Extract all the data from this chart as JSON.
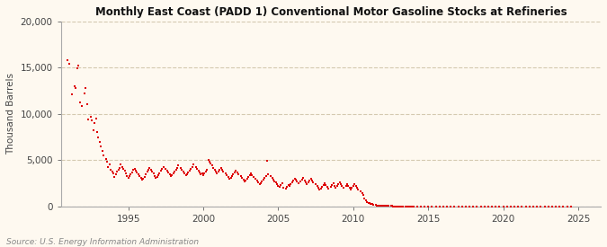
{
  "title": "Monthly East Coast (PADD 1) Conventional Motor Gasoline Stocks at Refineries",
  "ylabel": "Thousand Barrels",
  "source": "Source: U.S. Energy Information Administration",
  "background_color": "#fef9f0",
  "plot_bg_color": "#fef9f0",
  "grid_color": "#d4c9b0",
  "data_color": "#dd0000",
  "ylim": [
    0,
    20000
  ],
  "yticks": [
    0,
    5000,
    10000,
    15000,
    20000
  ],
  "xlim_start": 1990.5,
  "xlim_end": 2026.5,
  "xticks": [
    1995,
    2000,
    2005,
    2010,
    2015,
    2020,
    2025
  ],
  "series": [
    [
      1990.917,
      15800
    ],
    [
      1991.083,
      15400
    ],
    [
      1991.25,
      12100
    ],
    [
      1991.417,
      13000
    ],
    [
      1991.5,
      12800
    ],
    [
      1991.583,
      14900
    ],
    [
      1991.667,
      15200
    ],
    [
      1991.75,
      11200
    ],
    [
      1991.917,
      10900
    ],
    [
      1992.083,
      12200
    ],
    [
      1992.167,
      12800
    ],
    [
      1992.25,
      11100
    ],
    [
      1992.333,
      9400
    ],
    [
      1992.5,
      9700
    ],
    [
      1992.583,
      9300
    ],
    [
      1992.667,
      8200
    ],
    [
      1992.75,
      9000
    ],
    [
      1992.833,
      9500
    ],
    [
      1992.917,
      8000
    ],
    [
      1993.0,
      7500
    ],
    [
      1993.083,
      7000
    ],
    [
      1993.167,
      6500
    ],
    [
      1993.25,
      6000
    ],
    [
      1993.333,
      5500
    ],
    [
      1993.5,
      5100
    ],
    [
      1993.583,
      4800
    ],
    [
      1993.667,
      4300
    ],
    [
      1993.75,
      4500
    ],
    [
      1993.833,
      4000
    ],
    [
      1993.917,
      3800
    ],
    [
      1994.0,
      3600
    ],
    [
      1994.083,
      3200
    ],
    [
      1994.167,
      3500
    ],
    [
      1994.25,
      3800
    ],
    [
      1994.333,
      4000
    ],
    [
      1994.417,
      4200
    ],
    [
      1994.5,
      4500
    ],
    [
      1994.583,
      4300
    ],
    [
      1994.667,
      4100
    ],
    [
      1994.75,
      3900
    ],
    [
      1994.833,
      3600
    ],
    [
      1994.917,
      3300
    ],
    [
      1995.0,
      3100
    ],
    [
      1995.083,
      3300
    ],
    [
      1995.167,
      3500
    ],
    [
      1995.25,
      3700
    ],
    [
      1995.333,
      4000
    ],
    [
      1995.417,
      4100
    ],
    [
      1995.5,
      3900
    ],
    [
      1995.583,
      3700
    ],
    [
      1995.667,
      3500
    ],
    [
      1995.75,
      3300
    ],
    [
      1995.833,
      3100
    ],
    [
      1995.917,
      2900
    ],
    [
      1996.0,
      3000
    ],
    [
      1996.083,
      3200
    ],
    [
      1996.167,
      3500
    ],
    [
      1996.25,
      3800
    ],
    [
      1996.333,
      4000
    ],
    [
      1996.417,
      4200
    ],
    [
      1996.5,
      4000
    ],
    [
      1996.583,
      3800
    ],
    [
      1996.667,
      3600
    ],
    [
      1996.75,
      3300
    ],
    [
      1996.833,
      3100
    ],
    [
      1996.917,
      3200
    ],
    [
      1997.0,
      3400
    ],
    [
      1997.083,
      3600
    ],
    [
      1997.167,
      3900
    ],
    [
      1997.25,
      4100
    ],
    [
      1997.333,
      4300
    ],
    [
      1997.5,
      4100
    ],
    [
      1997.583,
      3900
    ],
    [
      1997.667,
      3700
    ],
    [
      1997.75,
      3500
    ],
    [
      1997.833,
      3300
    ],
    [
      1997.917,
      3400
    ],
    [
      1998.0,
      3600
    ],
    [
      1998.083,
      3800
    ],
    [
      1998.167,
      4000
    ],
    [
      1998.25,
      4200
    ],
    [
      1998.333,
      4400
    ],
    [
      1998.5,
      4200
    ],
    [
      1998.583,
      4000
    ],
    [
      1998.667,
      3800
    ],
    [
      1998.75,
      3600
    ],
    [
      1998.833,
      3400
    ],
    [
      1998.917,
      3500
    ],
    [
      1999.0,
      3700
    ],
    [
      1999.083,
      3900
    ],
    [
      1999.167,
      4100
    ],
    [
      1999.25,
      4300
    ],
    [
      1999.333,
      4500
    ],
    [
      1999.5,
      4300
    ],
    [
      1999.583,
      4100
    ],
    [
      1999.667,
      3900
    ],
    [
      1999.75,
      3700
    ],
    [
      1999.833,
      3500
    ],
    [
      1999.917,
      3600
    ],
    [
      2000.0,
      3400
    ],
    [
      2000.083,
      3600
    ],
    [
      2000.167,
      3800
    ],
    [
      2000.25,
      4000
    ],
    [
      2000.333,
      5000
    ],
    [
      2000.417,
      4800
    ],
    [
      2000.5,
      4600
    ],
    [
      2000.583,
      4400
    ],
    [
      2000.667,
      4200
    ],
    [
      2000.75,
      4000
    ],
    [
      2000.833,
      3800
    ],
    [
      2000.917,
      3600
    ],
    [
      2001.0,
      3800
    ],
    [
      2001.083,
      4000
    ],
    [
      2001.167,
      4200
    ],
    [
      2001.25,
      4000
    ],
    [
      2001.333,
      3800
    ],
    [
      2001.5,
      3600
    ],
    [
      2001.583,
      3400
    ],
    [
      2001.667,
      3200
    ],
    [
      2001.75,
      3000
    ],
    [
      2001.833,
      3100
    ],
    [
      2001.917,
      3300
    ],
    [
      2002.0,
      3500
    ],
    [
      2002.083,
      3700
    ],
    [
      2002.167,
      3900
    ],
    [
      2002.25,
      3700
    ],
    [
      2002.333,
      3500
    ],
    [
      2002.5,
      3300
    ],
    [
      2002.583,
      3100
    ],
    [
      2002.667,
      2900
    ],
    [
      2002.75,
      2700
    ],
    [
      2002.833,
      2800
    ],
    [
      2002.917,
      3000
    ],
    [
      2003.0,
      3200
    ],
    [
      2003.083,
      3400
    ],
    [
      2003.167,
      3600
    ],
    [
      2003.25,
      3400
    ],
    [
      2003.333,
      3200
    ],
    [
      2003.5,
      3000
    ],
    [
      2003.583,
      2800
    ],
    [
      2003.667,
      2600
    ],
    [
      2003.75,
      2400
    ],
    [
      2003.833,
      2500
    ],
    [
      2003.917,
      2700
    ],
    [
      2004.0,
      2900
    ],
    [
      2004.083,
      3100
    ],
    [
      2004.167,
      3300
    ],
    [
      2004.25,
      4900
    ],
    [
      2004.333,
      3500
    ],
    [
      2004.5,
      3300
    ],
    [
      2004.583,
      3100
    ],
    [
      2004.667,
      2900
    ],
    [
      2004.75,
      2700
    ],
    [
      2004.833,
      2600
    ],
    [
      2004.917,
      2400
    ],
    [
      2005.0,
      2200
    ],
    [
      2005.083,
      2100
    ],
    [
      2005.167,
      2300
    ],
    [
      2005.25,
      2500
    ],
    [
      2005.333,
      2000
    ],
    [
      2005.5,
      1900
    ],
    [
      2005.583,
      2100
    ],
    [
      2005.667,
      2300
    ],
    [
      2005.75,
      2200
    ],
    [
      2005.833,
      2400
    ],
    [
      2005.917,
      2600
    ],
    [
      2006.0,
      2800
    ],
    [
      2006.083,
      3000
    ],
    [
      2006.167,
      2900
    ],
    [
      2006.25,
      2700
    ],
    [
      2006.333,
      2500
    ],
    [
      2006.5,
      2700
    ],
    [
      2006.583,
      2900
    ],
    [
      2006.667,
      3100
    ],
    [
      2006.75,
      2800
    ],
    [
      2006.833,
      2600
    ],
    [
      2006.917,
      2400
    ],
    [
      2007.0,
      2600
    ],
    [
      2007.083,
      2800
    ],
    [
      2007.167,
      3000
    ],
    [
      2007.25,
      2800
    ],
    [
      2007.333,
      2600
    ],
    [
      2007.5,
      2400
    ],
    [
      2007.583,
      2200
    ],
    [
      2007.667,
      2000
    ],
    [
      2007.75,
      1800
    ],
    [
      2007.833,
      1900
    ],
    [
      2007.917,
      2100
    ],
    [
      2008.0,
      2300
    ],
    [
      2008.083,
      2500
    ],
    [
      2008.167,
      2300
    ],
    [
      2008.25,
      2100
    ],
    [
      2008.333,
      1900
    ],
    [
      2008.5,
      2100
    ],
    [
      2008.583,
      2300
    ],
    [
      2008.667,
      2500
    ],
    [
      2008.75,
      2200
    ],
    [
      2008.833,
      2000
    ],
    [
      2008.917,
      2200
    ],
    [
      2009.0,
      2400
    ],
    [
      2009.083,
      2600
    ],
    [
      2009.167,
      2400
    ],
    [
      2009.25,
      2200
    ],
    [
      2009.333,
      2000
    ],
    [
      2009.5,
      2200
    ],
    [
      2009.583,
      2400
    ],
    [
      2009.667,
      2200
    ],
    [
      2009.75,
      2000
    ],
    [
      2009.833,
      1800
    ],
    [
      2009.917,
      2000
    ],
    [
      2010.0,
      2200
    ],
    [
      2010.083,
      2400
    ],
    [
      2010.167,
      2200
    ],
    [
      2010.25,
      2000
    ],
    [
      2010.333,
      1800
    ],
    [
      2010.5,
      1600
    ],
    [
      2010.583,
      1400
    ],
    [
      2010.667,
      1200
    ],
    [
      2010.75,
      900
    ],
    [
      2010.833,
      700
    ],
    [
      2010.917,
      500
    ],
    [
      2011.0,
      400
    ],
    [
      2011.083,
      350
    ],
    [
      2011.167,
      300
    ],
    [
      2011.25,
      250
    ],
    [
      2011.333,
      200
    ],
    [
      2011.5,
      150
    ],
    [
      2011.583,
      120
    ],
    [
      2011.667,
      100
    ],
    [
      2011.75,
      90
    ],
    [
      2011.833,
      80
    ],
    [
      2011.917,
      70
    ],
    [
      2012.0,
      60
    ],
    [
      2012.083,
      55
    ],
    [
      2012.167,
      50
    ],
    [
      2012.25,
      45
    ],
    [
      2012.333,
      40
    ],
    [
      2012.5,
      35
    ],
    [
      2012.583,
      30
    ],
    [
      2012.667,
      25
    ],
    [
      2012.75,
      20
    ],
    [
      2012.833,
      18
    ],
    [
      2012.917,
      15
    ],
    [
      2013.0,
      12
    ],
    [
      2013.083,
      10
    ],
    [
      2013.167,
      8
    ],
    [
      2013.25,
      6
    ],
    [
      2013.333,
      5
    ],
    [
      2013.5,
      4
    ],
    [
      2013.583,
      3
    ],
    [
      2013.667,
      2
    ],
    [
      2013.75,
      2
    ],
    [
      2013.833,
      2
    ],
    [
      2013.917,
      2
    ],
    [
      2014.0,
      2
    ],
    [
      2014.25,
      2
    ],
    [
      2014.5,
      2
    ],
    [
      2014.75,
      2
    ],
    [
      2015.0,
      2
    ],
    [
      2015.25,
      2
    ],
    [
      2015.5,
      2
    ],
    [
      2015.75,
      2
    ],
    [
      2016.0,
      2
    ],
    [
      2016.25,
      2
    ],
    [
      2016.5,
      2
    ],
    [
      2016.75,
      2
    ],
    [
      2017.0,
      2
    ],
    [
      2017.25,
      2
    ],
    [
      2017.5,
      2
    ],
    [
      2017.75,
      2
    ],
    [
      2018.0,
      2
    ],
    [
      2018.25,
      2
    ],
    [
      2018.5,
      2
    ],
    [
      2018.75,
      2
    ],
    [
      2019.0,
      2
    ],
    [
      2019.25,
      2
    ],
    [
      2019.5,
      2
    ],
    [
      2019.75,
      2
    ],
    [
      2020.0,
      2
    ],
    [
      2020.25,
      2
    ],
    [
      2020.5,
      2
    ],
    [
      2020.75,
      2
    ],
    [
      2021.0,
      2
    ],
    [
      2021.25,
      2
    ],
    [
      2021.5,
      2
    ],
    [
      2021.75,
      2
    ],
    [
      2022.0,
      2
    ],
    [
      2022.25,
      2
    ],
    [
      2022.5,
      2
    ],
    [
      2022.75,
      2
    ],
    [
      2023.0,
      2
    ],
    [
      2023.25,
      2
    ],
    [
      2023.5,
      2
    ],
    [
      2023.75,
      2
    ],
    [
      2024.0,
      2
    ],
    [
      2024.25,
      2
    ],
    [
      2024.5,
      2
    ]
  ]
}
